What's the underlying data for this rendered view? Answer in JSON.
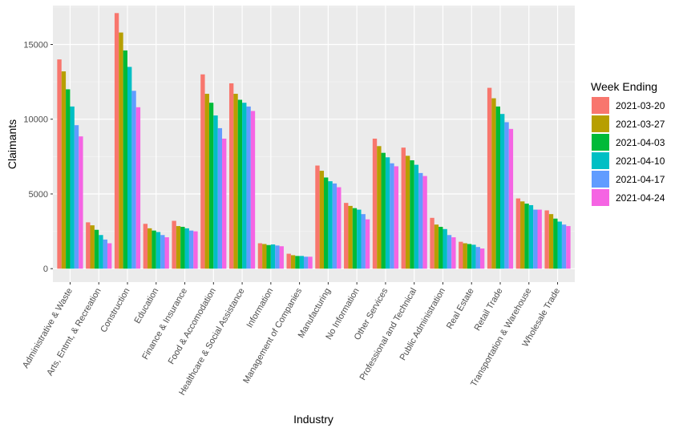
{
  "chart_data": {
    "type": "bar",
    "xlabel": "Industry",
    "ylabel": "Claimants",
    "ylim": [
      -900,
      17600
    ],
    "y_ticks": [
      0,
      5000,
      10000,
      15000
    ],
    "y_tick_labels": [
      "0",
      "5000",
      "10000",
      "15000"
    ],
    "grid": true,
    "legend_position": "right",
    "legend_title": "Week Ending",
    "categories": [
      "Administrative & Waste",
      "Arts, Entmt, & Recreation",
      "Construction",
      "Education",
      "Finance & Insurance",
      "Food & Accomodation",
      "Healthcare & Social Assistance",
      "Information",
      "Management of Companies",
      "Manufacturing",
      "No Information",
      "Other Services",
      "Professional and Technical",
      "Public Administration",
      "Real Estate",
      "Retail Trade",
      "Transportation & Warehouse",
      "Wholesale Trade"
    ],
    "series": [
      {
        "name": "2021-03-20",
        "color": "#F8766D",
        "values": [
          14000,
          3100,
          17100,
          3000,
          3200,
          13000,
          12400,
          1700,
          1000,
          6900,
          4400,
          8700,
          8100,
          3400,
          1800,
          12100,
          4700,
          3900
        ]
      },
      {
        "name": "2021-03-27",
        "color": "#B79F00",
        "values": [
          13200,
          2900,
          15800,
          2700,
          2850,
          11700,
          11700,
          1650,
          900,
          6550,
          4200,
          8200,
          7550,
          2950,
          1700,
          11400,
          4500,
          3650
        ]
      },
      {
        "name": "2021-04-03",
        "color": "#00BA38",
        "values": [
          12000,
          2600,
          14600,
          2550,
          2800,
          11100,
          11300,
          1580,
          850,
          6100,
          4050,
          7750,
          7250,
          2800,
          1650,
          10850,
          4350,
          3350
        ]
      },
      {
        "name": "2021-04-10",
        "color": "#00BFC4",
        "values": [
          10850,
          2250,
          13500,
          2450,
          2700,
          10250,
          11100,
          1620,
          850,
          5850,
          3950,
          7450,
          6950,
          2650,
          1600,
          10350,
          4250,
          3150
        ]
      },
      {
        "name": "2021-04-17",
        "color": "#619CFF",
        "values": [
          9600,
          1950,
          11900,
          2250,
          2550,
          9400,
          10850,
          1550,
          800,
          5700,
          3650,
          7050,
          6400,
          2250,
          1450,
          9800,
          3950,
          2950
        ]
      },
      {
        "name": "2021-04-24",
        "color": "#F564E3",
        "values": [
          8850,
          1700,
          10800,
          2100,
          2500,
          8700,
          10550,
          1500,
          800,
          5450,
          3300,
          6850,
          6200,
          2100,
          1350,
          9350,
          3950,
          2850
        ]
      }
    ]
  }
}
